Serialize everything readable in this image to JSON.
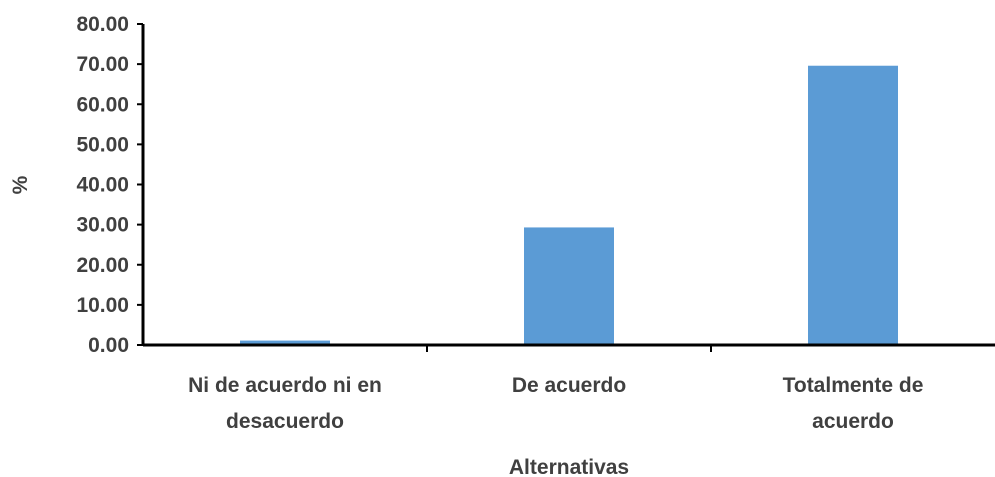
{
  "chart_data": {
    "type": "bar",
    "categories": [
      [
        "Ni de acuerdo ni en",
        "desacuerdo"
      ],
      [
        "De acuerdo"
      ],
      [
        "Totalmente de",
        "acuerdo"
      ]
    ],
    "values": [
      1.1,
      29.3,
      69.6
    ],
    "xlabel": "Alternativas",
    "ylabel": "%",
    "ylim": [
      0,
      80
    ],
    "yticks": [
      "0.00",
      "10.00",
      "20.00",
      "30.00",
      "40.00",
      "50.00",
      "60.00",
      "70.00",
      "80.00"
    ],
    "bar_color": "#5b9bd5",
    "axis_color": "#000000",
    "grid": false,
    "legend": "none"
  }
}
